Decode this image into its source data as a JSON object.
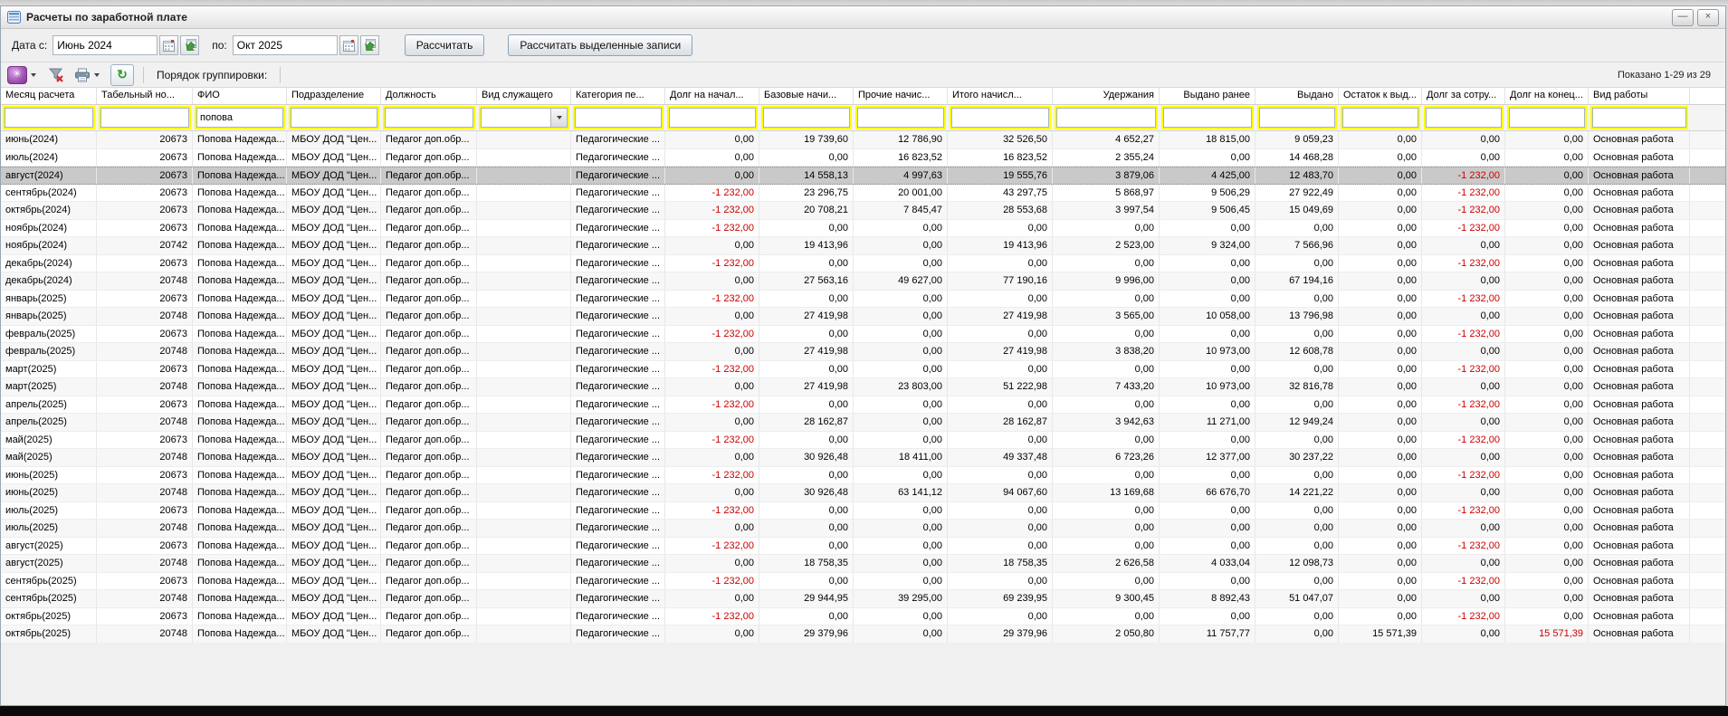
{
  "colors": {
    "filter_highlight": "#ffff00",
    "negative_value": "#cc0000",
    "selected_row": "#c9c9c9"
  },
  "icons": {
    "settings_glyph": "✳",
    "refresh_glyph": "↻",
    "minimize_glyph": "—",
    "close_glyph": "×",
    "combo_arrow": "▼"
  },
  "window": {
    "title": "Расчеты по заработной плате"
  },
  "controls": {
    "date_from_label": "Дата с:",
    "date_from_value": "Июнь 2024",
    "date_to_label": "по:",
    "date_to_value": "Окт 2025",
    "calc_button": "Рассчитать",
    "calc_selected_button": "Рассчитать выделенные записи"
  },
  "toolbar": {
    "grouping_label": "Порядок группировки:",
    "shown_text": "Показано 1-29 из 29"
  },
  "table": {
    "columns": [
      {
        "key": "month",
        "label": "Месяц расчета"
      },
      {
        "key": "tab_no",
        "label": "Табельный но..."
      },
      {
        "key": "fio",
        "label": "ФИО"
      },
      {
        "key": "department",
        "label": "Подразделение"
      },
      {
        "key": "position",
        "label": "Должность"
      },
      {
        "key": "employee_type",
        "label": "Вид служащего"
      },
      {
        "key": "category",
        "label": "Категория пе..."
      },
      {
        "key": "debt_start",
        "label": "Долг на начал..."
      },
      {
        "key": "base_accruals",
        "label": "Базовые начи..."
      },
      {
        "key": "other_accruals",
        "label": "Прочие начис..."
      },
      {
        "key": "total_accruals",
        "label": "Итого начисл..."
      },
      {
        "key": "deductions",
        "label": "Удержания"
      },
      {
        "key": "paid_earlier",
        "label": "Выдано ранее"
      },
      {
        "key": "paid",
        "label": "Выдано"
      },
      {
        "key": "remainder_to_pay",
        "label": "Остаток к выд..."
      },
      {
        "key": "employee_debt",
        "label": "Долг за сотру..."
      },
      {
        "key": "debt_end",
        "label": "Долг на конец..."
      },
      {
        "key": "work_type",
        "label": "Вид работы"
      }
    ],
    "filter_values": {
      "fio": "попова",
      "employee_type": ""
    },
    "rows": [
      {
        "cells": [
          "июнь(2024)",
          "20673",
          "Попова Надежда...",
          "МБОУ ДОД \"Цен...",
          "Педагог доп.обр...",
          "",
          "Педагогические ...",
          "0,00",
          "19 739,60",
          "12 786,90",
          "32 526,50",
          "4 652,27",
          "18 815,00",
          "9 059,23",
          "0,00",
          "0,00",
          "0,00",
          "Основная работа"
        ],
        "red": []
      },
      {
        "cells": [
          "июль(2024)",
          "20673",
          "Попова Надежда...",
          "МБОУ ДОД \"Цен...",
          "Педагог доп.обр...",
          "",
          "Педагогические ...",
          "0,00",
          "0,00",
          "16 823,52",
          "16 823,52",
          "2 355,24",
          "0,00",
          "14 468,28",
          "0,00",
          "0,00",
          "0,00",
          "Основная работа"
        ],
        "red": []
      },
      {
        "cells": [
          "август(2024)",
          "20673",
          "Попова Надежда...",
          "МБОУ ДОД \"Цен...",
          "Педагог доп.обр...",
          "",
          "Педагогические ...",
          "0,00",
          "14 558,13",
          "4 997,63",
          "19 555,76",
          "3 879,06",
          "4 425,00",
          "12 483,70",
          "0,00",
          "-1 232,00",
          "0,00",
          "Основная работа"
        ],
        "red": [
          15
        ],
        "selected": true
      },
      {
        "cells": [
          "сентябрь(2024)",
          "20673",
          "Попова Надежда...",
          "МБОУ ДОД \"Цен...",
          "Педагог доп.обр...",
          "",
          "Педагогические ...",
          "-1 232,00",
          "23 296,75",
          "20 001,00",
          "43 297,75",
          "5 868,97",
          "9 506,29",
          "27 922,49",
          "0,00",
          "-1 232,00",
          "0,00",
          "Основная работа"
        ],
        "red": [
          7,
          15
        ]
      },
      {
        "cells": [
          "октябрь(2024)",
          "20673",
          "Попова Надежда...",
          "МБОУ ДОД \"Цен...",
          "Педагог доп.обр...",
          "",
          "Педагогические ...",
          "-1 232,00",
          "20 708,21",
          "7 845,47",
          "28 553,68",
          "3 997,54",
          "9 506,45",
          "15 049,69",
          "0,00",
          "-1 232,00",
          "0,00",
          "Основная работа"
        ],
        "red": [
          7,
          15
        ]
      },
      {
        "cells": [
          "ноябрь(2024)",
          "20673",
          "Попова Надежда...",
          "МБОУ ДОД \"Цен...",
          "Педагог доп.обр...",
          "",
          "Педагогические ...",
          "-1 232,00",
          "0,00",
          "0,00",
          "0,00",
          "0,00",
          "0,00",
          "0,00",
          "0,00",
          "-1 232,00",
          "0,00",
          "Основная работа"
        ],
        "red": [
          7,
          15
        ]
      },
      {
        "cells": [
          "ноябрь(2024)",
          "20742",
          "Попова Надежда...",
          "МБОУ ДОД \"Цен...",
          "Педагог доп.обр...",
          "",
          "Педагогические ...",
          "0,00",
          "19 413,96",
          "0,00",
          "19 413,96",
          "2 523,00",
          "9 324,00",
          "7 566,96",
          "0,00",
          "0,00",
          "0,00",
          "Основная работа"
        ],
        "red": []
      },
      {
        "cells": [
          "декабрь(2024)",
          "20673",
          "Попова Надежда...",
          "МБОУ ДОД \"Цен...",
          "Педагог доп.обр...",
          "",
          "Педагогические ...",
          "-1 232,00",
          "0,00",
          "0,00",
          "0,00",
          "0,00",
          "0,00",
          "0,00",
          "0,00",
          "-1 232,00",
          "0,00",
          "Основная работа"
        ],
        "red": [
          7,
          15
        ]
      },
      {
        "cells": [
          "декабрь(2024)",
          "20748",
          "Попова Надежда...",
          "МБОУ ДОД \"Цен...",
          "Педагог доп.обр...",
          "",
          "Педагогические ...",
          "0,00",
          "27 563,16",
          "49 627,00",
          "77 190,16",
          "9 996,00",
          "0,00",
          "67 194,16",
          "0,00",
          "0,00",
          "0,00",
          "Основная работа"
        ],
        "red": []
      },
      {
        "cells": [
          "январь(2025)",
          "20673",
          "Попова Надежда...",
          "МБОУ ДОД \"Цен...",
          "Педагог доп.обр...",
          "",
          "Педагогические ...",
          "-1 232,00",
          "0,00",
          "0,00",
          "0,00",
          "0,00",
          "0,00",
          "0,00",
          "0,00",
          "-1 232,00",
          "0,00",
          "Основная работа"
        ],
        "red": [
          7,
          15
        ]
      },
      {
        "cells": [
          "январь(2025)",
          "20748",
          "Попова Надежда...",
          "МБОУ ДОД \"Цен...",
          "Педагог доп.обр...",
          "",
          "Педагогические ...",
          "0,00",
          "27 419,98",
          "0,00",
          "27 419,98",
          "3 565,00",
          "10 058,00",
          "13 796,98",
          "0,00",
          "0,00",
          "0,00",
          "Основная работа"
        ],
        "red": []
      },
      {
        "cells": [
          "февраль(2025)",
          "20673",
          "Попова Надежда...",
          "МБОУ ДОД \"Цен...",
          "Педагог доп.обр...",
          "",
          "Педагогические ...",
          "-1 232,00",
          "0,00",
          "0,00",
          "0,00",
          "0,00",
          "0,00",
          "0,00",
          "0,00",
          "-1 232,00",
          "0,00",
          "Основная работа"
        ],
        "red": [
          7,
          15
        ]
      },
      {
        "cells": [
          "февраль(2025)",
          "20748",
          "Попова Надежда...",
          "МБОУ ДОД \"Цен...",
          "Педагог доп.обр...",
          "",
          "Педагогические ...",
          "0,00",
          "27 419,98",
          "0,00",
          "27 419,98",
          "3 838,20",
          "10 973,00",
          "12 608,78",
          "0,00",
          "0,00",
          "0,00",
          "Основная работа"
        ],
        "red": []
      },
      {
        "cells": [
          "март(2025)",
          "20673",
          "Попова Надежда...",
          "МБОУ ДОД \"Цен...",
          "Педагог доп.обр...",
          "",
          "Педагогические ...",
          "-1 232,00",
          "0,00",
          "0,00",
          "0,00",
          "0,00",
          "0,00",
          "0,00",
          "0,00",
          "-1 232,00",
          "0,00",
          "Основная работа"
        ],
        "red": [
          7,
          15
        ]
      },
      {
        "cells": [
          "март(2025)",
          "20748",
          "Попова Надежда...",
          "МБОУ ДОД \"Цен...",
          "Педагог доп.обр...",
          "",
          "Педагогические ...",
          "0,00",
          "27 419,98",
          "23 803,00",
          "51 222,98",
          "7 433,20",
          "10 973,00",
          "32 816,78",
          "0,00",
          "0,00",
          "0,00",
          "Основная работа"
        ],
        "red": []
      },
      {
        "cells": [
          "апрель(2025)",
          "20673",
          "Попова Надежда...",
          "МБОУ ДОД \"Цен...",
          "Педагог доп.обр...",
          "",
          "Педагогические ...",
          "-1 232,00",
          "0,00",
          "0,00",
          "0,00",
          "0,00",
          "0,00",
          "0,00",
          "0,00",
          "-1 232,00",
          "0,00",
          "Основная работа"
        ],
        "red": [
          7,
          15
        ]
      },
      {
        "cells": [
          "апрель(2025)",
          "20748",
          "Попова Надежда...",
          "МБОУ ДОД \"Цен...",
          "Педагог доп.обр...",
          "",
          "Педагогические ...",
          "0,00",
          "28 162,87",
          "0,00",
          "28 162,87",
          "3 942,63",
          "11 271,00",
          "12 949,24",
          "0,00",
          "0,00",
          "0,00",
          "Основная работа"
        ],
        "red": []
      },
      {
        "cells": [
          "май(2025)",
          "20673",
          "Попова Надежда...",
          "МБОУ ДОД \"Цен...",
          "Педагог доп.обр...",
          "",
          "Педагогические ...",
          "-1 232,00",
          "0,00",
          "0,00",
          "0,00",
          "0,00",
          "0,00",
          "0,00",
          "0,00",
          "-1 232,00",
          "0,00",
          "Основная работа"
        ],
        "red": [
          7,
          15
        ]
      },
      {
        "cells": [
          "май(2025)",
          "20748",
          "Попова Надежда...",
          "МБОУ ДОД \"Цен...",
          "Педагог доп.обр...",
          "",
          "Педагогические ...",
          "0,00",
          "30 926,48",
          "18 411,00",
          "49 337,48",
          "6 723,26",
          "12 377,00",
          "30 237,22",
          "0,00",
          "0,00",
          "0,00",
          "Основная работа"
        ],
        "red": []
      },
      {
        "cells": [
          "июнь(2025)",
          "20673",
          "Попова Надежда...",
          "МБОУ ДОД \"Цен...",
          "Педагог доп.обр...",
          "",
          "Педагогические ...",
          "-1 232,00",
          "0,00",
          "0,00",
          "0,00",
          "0,00",
          "0,00",
          "0,00",
          "0,00",
          "-1 232,00",
          "0,00",
          "Основная работа"
        ],
        "red": [
          7,
          15
        ]
      },
      {
        "cells": [
          "июнь(2025)",
          "20748",
          "Попова Надежда...",
          "МБОУ ДОД \"Цен...",
          "Педагог доп.обр...",
          "",
          "Педагогические ...",
          "0,00",
          "30 926,48",
          "63 141,12",
          "94 067,60",
          "13 169,68",
          "66 676,70",
          "14 221,22",
          "0,00",
          "0,00",
          "0,00",
          "Основная работа"
        ],
        "red": []
      },
      {
        "cells": [
          "июль(2025)",
          "20673",
          "Попова Надежда...",
          "МБОУ ДОД \"Цен...",
          "Педагог доп.обр...",
          "",
          "Педагогические ...",
          "-1 232,00",
          "0,00",
          "0,00",
          "0,00",
          "0,00",
          "0,00",
          "0,00",
          "0,00",
          "-1 232,00",
          "0,00",
          "Основная работа"
        ],
        "red": [
          7,
          15
        ]
      },
      {
        "cells": [
          "июль(2025)",
          "20748",
          "Попова Надежда...",
          "МБОУ ДОД \"Цен...",
          "Педагог доп.обр...",
          "",
          "Педагогические ...",
          "0,00",
          "0,00",
          "0,00",
          "0,00",
          "0,00",
          "0,00",
          "0,00",
          "0,00",
          "0,00",
          "0,00",
          "Основная работа"
        ],
        "red": []
      },
      {
        "cells": [
          "август(2025)",
          "20673",
          "Попова Надежда...",
          "МБОУ ДОД \"Цен...",
          "Педагог доп.обр...",
          "",
          "Педагогические ...",
          "-1 232,00",
          "0,00",
          "0,00",
          "0,00",
          "0,00",
          "0,00",
          "0,00",
          "0,00",
          "-1 232,00",
          "0,00",
          "Основная работа"
        ],
        "red": [
          7,
          15
        ]
      },
      {
        "cells": [
          "август(2025)",
          "20748",
          "Попова Надежда...",
          "МБОУ ДОД \"Цен...",
          "Педагог доп.обр...",
          "",
          "Педагогические ...",
          "0,00",
          "18 758,35",
          "0,00",
          "18 758,35",
          "2 626,58",
          "4 033,04",
          "12 098,73",
          "0,00",
          "0,00",
          "0,00",
          "Основная работа"
        ],
        "red": []
      },
      {
        "cells": [
          "сентябрь(2025)",
          "20673",
          "Попова Надежда...",
          "МБОУ ДОД \"Цен...",
          "Педагог доп.обр...",
          "",
          "Педагогические ...",
          "-1 232,00",
          "0,00",
          "0,00",
          "0,00",
          "0,00",
          "0,00",
          "0,00",
          "0,00",
          "-1 232,00",
          "0,00",
          "Основная работа"
        ],
        "red": [
          7,
          15
        ]
      },
      {
        "cells": [
          "сентябрь(2025)",
          "20748",
          "Попова Надежда...",
          "МБОУ ДОД \"Цен...",
          "Педагог доп.обр...",
          "",
          "Педагогические ...",
          "0,00",
          "29 944,95",
          "39 295,00",
          "69 239,95",
          "9 300,45",
          "8 892,43",
          "51 047,07",
          "0,00",
          "0,00",
          "0,00",
          "Основная работа"
        ],
        "red": []
      },
      {
        "cells": [
          "октябрь(2025)",
          "20673",
          "Попова Надежда...",
          "МБОУ ДОД \"Цен...",
          "Педагог доп.обр...",
          "",
          "Педагогические ...",
          "-1 232,00",
          "0,00",
          "0,00",
          "0,00",
          "0,00",
          "0,00",
          "0,00",
          "0,00",
          "-1 232,00",
          "0,00",
          "Основная работа"
        ],
        "red": [
          7,
          15
        ]
      },
      {
        "cells": [
          "октябрь(2025)",
          "20748",
          "Попова Надежда...",
          "МБОУ ДОД \"Цен...",
          "Педагог доп.обр...",
          "",
          "Педагогические ...",
          "0,00",
          "29 379,96",
          "0,00",
          "29 379,96",
          "2 050,80",
          "11 757,77",
          "0,00",
          "15 571,39",
          "0,00",
          "15 571,39",
          "Основная работа"
        ],
        "red": [
          16
        ]
      }
    ]
  }
}
